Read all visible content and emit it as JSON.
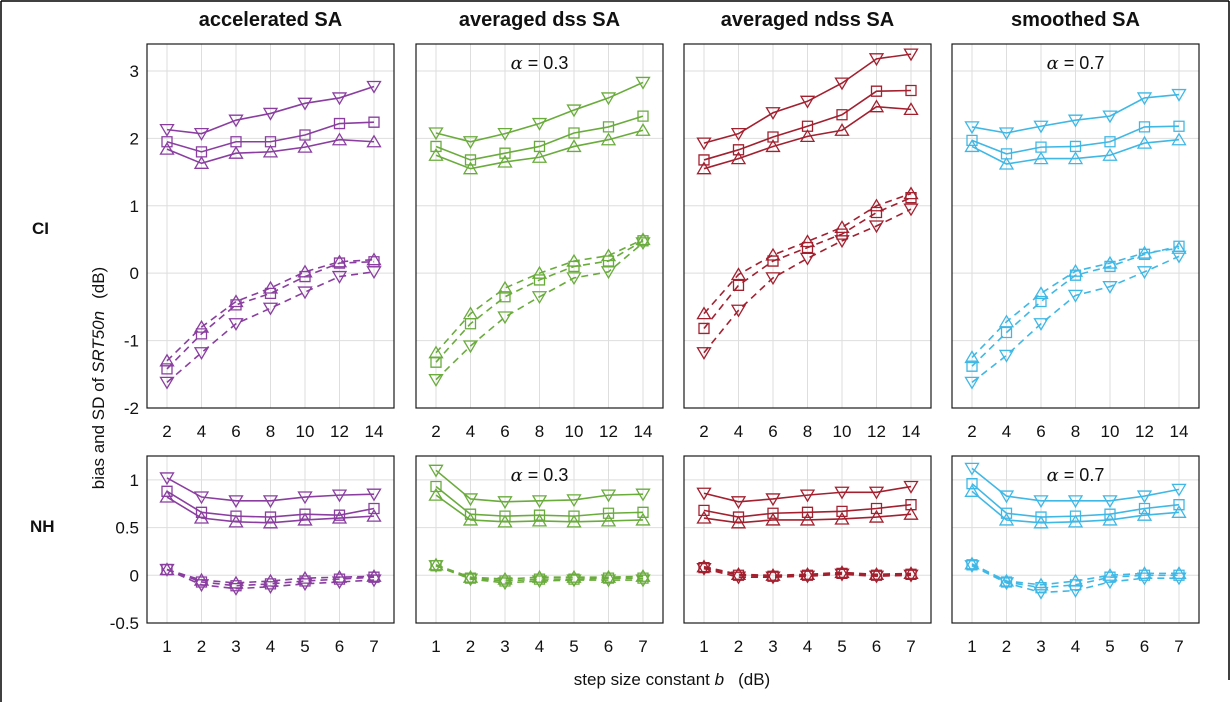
{
  "chart_data": {
    "type": "line",
    "ylabel": {
      "prefix": "bias and SD of ",
      "var": "SRT50n",
      "unit": "(dB)"
    },
    "xlabel": {
      "prefix": "step size constant ",
      "var": "b",
      "unit": "(dB)"
    },
    "row_labels": [
      "CI",
      "NH"
    ],
    "panels": [
      {
        "title": "accelerated SA",
        "annotation": "",
        "color": "#8a3fa0",
        "CI": {
          "x": [
            2,
            4,
            6,
            8,
            10,
            12,
            14
          ],
          "ylim": [
            -2,
            3.4
          ],
          "yticks": [
            -2,
            -1,
            0,
            1,
            2,
            3
          ],
          "series": [
            {
              "marker": "tri-down",
              "style": "solid",
              "values": [
                2.13,
                2.07,
                2.27,
                2.37,
                2.52,
                2.6,
                2.77
              ]
            },
            {
              "marker": "square",
              "style": "solid",
              "values": [
                1.95,
                1.8,
                1.95,
                1.95,
                2.05,
                2.22,
                2.24
              ]
            },
            {
              "marker": "tri-up",
              "style": "solid",
              "values": [
                1.84,
                1.63,
                1.78,
                1.8,
                1.87,
                1.98,
                1.95
              ]
            },
            {
              "marker": "tri-down",
              "style": "dashed",
              "values": [
                -1.62,
                -1.18,
                -0.75,
                -0.52,
                -0.28,
                -0.05,
                0.02
              ]
            },
            {
              "marker": "square",
              "style": "dashed",
              "values": [
                -1.42,
                -0.9,
                -0.47,
                -0.3,
                -0.05,
                0.15,
                0.17
              ]
            },
            {
              "marker": "tri-up",
              "style": "dashed",
              "values": [
                -1.3,
                -0.8,
                -0.42,
                -0.22,
                0.02,
                0.17,
                0.2
              ]
            }
          ]
        },
        "NH": {
          "x": [
            1,
            2,
            3,
            4,
            5,
            6,
            7
          ],
          "ylim": [
            -0.5,
            1.25
          ],
          "yticks": [
            -0.5,
            0,
            0.5,
            1
          ],
          "series": [
            {
              "marker": "tri-down",
              "style": "solid",
              "values": [
                1.02,
                0.82,
                0.78,
                0.78,
                0.82,
                0.84,
                0.85
              ]
            },
            {
              "marker": "square",
              "style": "solid",
              "values": [
                0.88,
                0.66,
                0.62,
                0.61,
                0.64,
                0.63,
                0.7
              ]
            },
            {
              "marker": "tri-up",
              "style": "solid",
              "values": [
                0.82,
                0.6,
                0.56,
                0.55,
                0.58,
                0.6,
                0.62
              ]
            },
            {
              "marker": "tri-down",
              "style": "dashed",
              "values": [
                0.06,
                -0.1,
                -0.14,
                -0.12,
                -0.09,
                -0.07,
                -0.05
              ]
            },
            {
              "marker": "square",
              "style": "dashed",
              "values": [
                0.06,
                -0.07,
                -0.11,
                -0.09,
                -0.06,
                -0.04,
                -0.02
              ]
            },
            {
              "marker": "tri-up",
              "style": "dashed",
              "values": [
                0.06,
                -0.05,
                -0.08,
                -0.06,
                -0.03,
                -0.02,
                -0.01
              ]
            }
          ]
        }
      },
      {
        "title": "averaged dss SA",
        "annotation": {
          "symbol": "α",
          "value": " = 0.3"
        },
        "color": "#6aac3c",
        "CI": {
          "x": [
            2,
            4,
            6,
            8,
            10,
            12,
            14
          ],
          "ylim": [
            -2,
            3.4
          ],
          "yticks": [
            -2,
            -1,
            0,
            1,
            2,
            3
          ],
          "series": [
            {
              "marker": "tri-down",
              "style": "solid",
              "values": [
                2.08,
                1.95,
                2.07,
                2.22,
                2.42,
                2.6,
                2.83
              ]
            },
            {
              "marker": "square",
              "style": "solid",
              "values": [
                1.88,
                1.68,
                1.78,
                1.88,
                2.08,
                2.17,
                2.33
              ]
            },
            {
              "marker": "tri-up",
              "style": "solid",
              "values": [
                1.75,
                1.55,
                1.65,
                1.72,
                1.88,
                1.98,
                2.12
              ]
            },
            {
              "marker": "tri-down",
              "style": "dashed",
              "values": [
                -1.58,
                -1.08,
                -0.65,
                -0.35,
                -0.07,
                0.02,
                0.45
              ]
            },
            {
              "marker": "square",
              "style": "dashed",
              "values": [
                -1.32,
                -0.75,
                -0.35,
                -0.1,
                0.1,
                0.18,
                0.48
              ]
            },
            {
              "marker": "tri-up",
              "style": "dashed",
              "values": [
                -1.18,
                -0.6,
                -0.22,
                0.0,
                0.18,
                0.26,
                0.5
              ]
            }
          ]
        },
        "NH": {
          "x": [
            1,
            2,
            3,
            4,
            5,
            6,
            7
          ],
          "ylim": [
            -0.5,
            1.25
          ],
          "yticks": [
            -0.5,
            0,
            0.5,
            1
          ],
          "series": [
            {
              "marker": "tri-down",
              "style": "solid",
              "values": [
                1.1,
                0.8,
                0.77,
                0.78,
                0.79,
                0.84,
                0.85
              ]
            },
            {
              "marker": "square",
              "style": "solid",
              "values": [
                0.93,
                0.64,
                0.62,
                0.63,
                0.62,
                0.65,
                0.66
              ]
            },
            {
              "marker": "tri-up",
              "style": "solid",
              "values": [
                0.84,
                0.58,
                0.56,
                0.57,
                0.56,
                0.57,
                0.58
              ]
            },
            {
              "marker": "tri-down",
              "style": "dashed",
              "values": [
                0.1,
                -0.04,
                -0.08,
                -0.06,
                -0.05,
                -0.05,
                -0.05
              ]
            },
            {
              "marker": "square",
              "style": "dashed",
              "values": [
                0.1,
                -0.03,
                -0.06,
                -0.04,
                -0.04,
                -0.03,
                -0.03
              ]
            },
            {
              "marker": "tri-up",
              "style": "dashed",
              "values": [
                0.11,
                -0.02,
                -0.04,
                -0.02,
                -0.02,
                -0.02,
                -0.01
              ]
            }
          ]
        }
      },
      {
        "title": "averaged ndss SA",
        "annotation": "",
        "color": "#a3202f",
        "CI": {
          "x": [
            2,
            4,
            6,
            8,
            10,
            12,
            14
          ],
          "ylim": [
            -2,
            3.4
          ],
          "yticks": [
            -2,
            -1,
            0,
            1,
            2,
            3
          ],
          "series": [
            {
              "marker": "tri-down",
              "style": "solid",
              "values": [
                1.93,
                2.07,
                2.38,
                2.55,
                2.82,
                3.18,
                3.25
              ]
            },
            {
              "marker": "square",
              "style": "solid",
              "values": [
                1.68,
                1.83,
                2.02,
                2.18,
                2.35,
                2.7,
                2.71
              ]
            },
            {
              "marker": "tri-up",
              "style": "solid",
              "values": [
                1.55,
                1.7,
                1.88,
                2.03,
                2.12,
                2.47,
                2.43
              ]
            },
            {
              "marker": "tri-down",
              "style": "dashed",
              "values": [
                -1.18,
                -0.55,
                -0.07,
                0.22,
                0.48,
                0.7,
                0.95
              ]
            },
            {
              "marker": "square",
              "style": "dashed",
              "values": [
                -0.82,
                -0.18,
                0.18,
                0.38,
                0.58,
                0.9,
                1.12
              ]
            },
            {
              "marker": "tri-up",
              "style": "dashed",
              "values": [
                -0.6,
                -0.02,
                0.27,
                0.47,
                0.68,
                1.0,
                1.18
              ]
            }
          ]
        },
        "NH": {
          "x": [
            1,
            2,
            3,
            4,
            5,
            6,
            7
          ],
          "ylim": [
            -0.5,
            1.25
          ],
          "yticks": [
            -0.5,
            0,
            0.5,
            1
          ],
          "series": [
            {
              "marker": "tri-down",
              "style": "solid",
              "values": [
                0.86,
                0.77,
                0.8,
                0.84,
                0.87,
                0.87,
                0.93
              ]
            },
            {
              "marker": "square",
              "style": "solid",
              "values": [
                0.68,
                0.61,
                0.65,
                0.66,
                0.67,
                0.7,
                0.74
              ]
            },
            {
              "marker": "tri-up",
              "style": "solid",
              "values": [
                0.6,
                0.55,
                0.58,
                0.58,
                0.59,
                0.61,
                0.64
              ]
            },
            {
              "marker": "tri-down",
              "style": "dashed",
              "values": [
                0.07,
                -0.02,
                -0.02,
                -0.01,
                0.01,
                -0.01,
                0.0
              ]
            },
            {
              "marker": "square",
              "style": "dashed",
              "values": [
                0.08,
                0.0,
                -0.01,
                0.0,
                0.02,
                0.0,
                0.01
              ]
            },
            {
              "marker": "tri-up",
              "style": "dashed",
              "values": [
                0.09,
                0.01,
                0.0,
                0.01,
                0.03,
                0.01,
                0.02
              ]
            }
          ]
        }
      },
      {
        "title": "smoothed SA",
        "annotation": {
          "symbol": "α",
          "value": " = 0.7"
        },
        "color": "#3fb8e6",
        "CI": {
          "x": [
            2,
            4,
            6,
            8,
            10,
            12,
            14
          ],
          "ylim": [
            -2,
            3.4
          ],
          "yticks": [
            -2,
            -1,
            0,
            1,
            2,
            3
          ],
          "series": [
            {
              "marker": "tri-down",
              "style": "solid",
              "values": [
                2.17,
                2.08,
                2.18,
                2.27,
                2.33,
                2.6,
                2.65
              ]
            },
            {
              "marker": "square",
              "style": "solid",
              "values": [
                1.97,
                1.77,
                1.87,
                1.88,
                1.95,
                2.17,
                2.18
              ]
            },
            {
              "marker": "tri-up",
              "style": "solid",
              "values": [
                1.88,
                1.62,
                1.7,
                1.7,
                1.75,
                1.93,
                1.98
              ]
            },
            {
              "marker": "tri-down",
              "style": "dashed",
              "values": [
                -1.62,
                -1.22,
                -0.75,
                -0.33,
                -0.2,
                0.02,
                0.25
              ]
            },
            {
              "marker": "square",
              "style": "dashed",
              "values": [
                -1.38,
                -0.88,
                -0.42,
                -0.03,
                0.1,
                0.28,
                0.4
              ]
            },
            {
              "marker": "tri-up",
              "style": "dashed",
              "values": [
                -1.25,
                -0.72,
                -0.3,
                0.03,
                0.15,
                0.3,
                0.37
              ]
            }
          ]
        },
        "NH": {
          "x": [
            1,
            2,
            3,
            4,
            5,
            6,
            7
          ],
          "ylim": [
            -0.5,
            1.25
          ],
          "yticks": [
            -0.5,
            0,
            0.5,
            1
          ],
          "series": [
            {
              "marker": "tri-down",
              "style": "solid",
              "values": [
                1.12,
                0.83,
                0.78,
                0.78,
                0.78,
                0.83,
                0.9
              ]
            },
            {
              "marker": "square",
              "style": "solid",
              "values": [
                0.96,
                0.65,
                0.61,
                0.62,
                0.64,
                0.7,
                0.74
              ]
            },
            {
              "marker": "tri-up",
              "style": "solid",
              "values": [
                0.88,
                0.58,
                0.55,
                0.56,
                0.58,
                0.63,
                0.66
              ]
            },
            {
              "marker": "tri-down",
              "style": "dashed",
              "values": [
                0.1,
                -0.08,
                -0.18,
                -0.16,
                -0.07,
                -0.03,
                -0.03
              ]
            },
            {
              "marker": "square",
              "style": "dashed",
              "values": [
                0.11,
                -0.07,
                -0.13,
                -0.1,
                -0.02,
                0.0,
                0.0
              ]
            },
            {
              "marker": "tri-up",
              "style": "dashed",
              "values": [
                0.12,
                -0.06,
                -0.1,
                -0.06,
                0.0,
                0.02,
                0.02
              ]
            }
          ]
        }
      }
    ]
  }
}
